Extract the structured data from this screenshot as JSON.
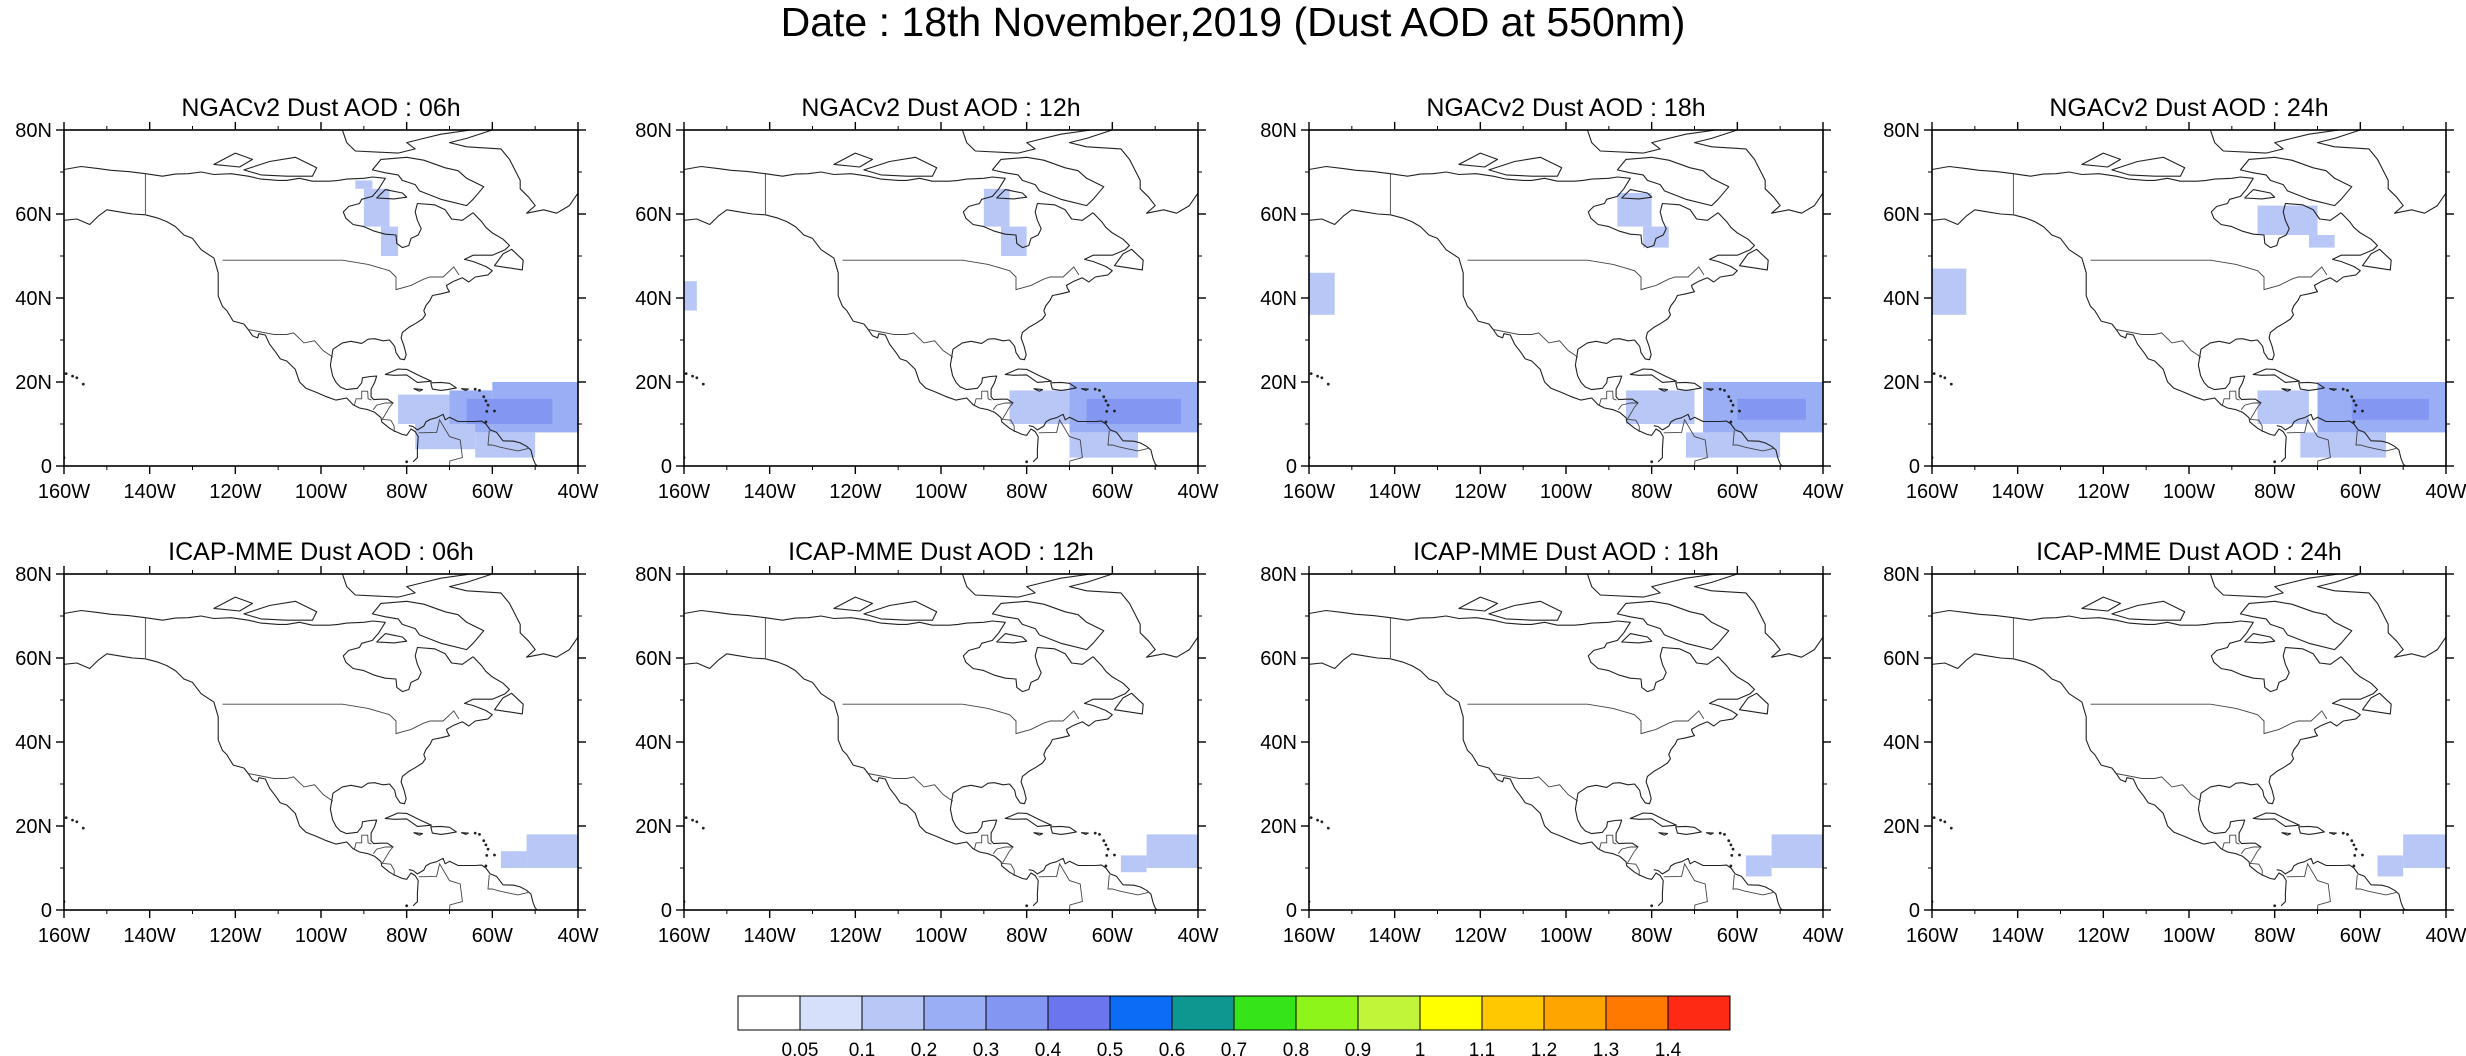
{
  "title": "Date : 18th November,2019 (Dust AOD at 550nm)",
  "panels": [
    {
      "title": "NGACv2 Dust AOD : 06h",
      "model": "NGACv2",
      "hour": "06h",
      "dust": [
        {
          "lon": [
            -92,
            -88
          ],
          "lat": [
            66,
            68
          ],
          "aod": 0.1
        },
        {
          "lon": [
            -90,
            -84
          ],
          "lat": [
            57,
            66
          ],
          "aod": 0.1
        },
        {
          "lon": [
            -86,
            -82
          ],
          "lat": [
            50,
            57
          ],
          "aod": 0.1
        },
        {
          "lon": [
            -82,
            -70
          ],
          "lat": [
            10,
            17
          ],
          "aod": 0.1
        },
        {
          "lon": [
            -70,
            -60
          ],
          "lat": [
            8,
            18
          ],
          "aod": 0.2
        },
        {
          "lon": [
            -60,
            -40
          ],
          "lat": [
            8,
            20
          ],
          "aod": 0.2
        },
        {
          "lon": [
            -66,
            -46
          ],
          "lat": [
            10,
            16
          ],
          "aod": 0.3
        },
        {
          "lon": [
            -78,
            -64
          ],
          "lat": [
            4,
            10
          ],
          "aod": 0.1
        },
        {
          "lon": [
            -64,
            -50
          ],
          "lat": [
            2,
            8
          ],
          "aod": 0.1
        }
      ]
    },
    {
      "title": "NGACv2 Dust AOD : 12h",
      "model": "NGACv2",
      "hour": "12h",
      "dust": [
        {
          "lon": [
            -160,
            -157
          ],
          "lat": [
            37,
            44
          ],
          "aod": 0.1
        },
        {
          "lon": [
            -90,
            -84
          ],
          "lat": [
            57,
            66
          ],
          "aod": 0.1
        },
        {
          "lon": [
            -86,
            -80
          ],
          "lat": [
            50,
            57
          ],
          "aod": 0.1
        },
        {
          "lon": [
            -84,
            -68
          ],
          "lat": [
            10,
            18
          ],
          "aod": 0.1
        },
        {
          "lon": [
            -70,
            -40
          ],
          "lat": [
            8,
            20
          ],
          "aod": 0.2
        },
        {
          "lon": [
            -66,
            -44
          ],
          "lat": [
            10,
            16
          ],
          "aod": 0.3
        },
        {
          "lon": [
            -70,
            -54
          ],
          "lat": [
            2,
            8
          ],
          "aod": 0.1
        }
      ]
    },
    {
      "title": "NGACv2 Dust AOD : 18h",
      "model": "NGACv2",
      "hour": "18h",
      "dust": [
        {
          "lon": [
            -160,
            -154
          ],
          "lat": [
            36,
            46
          ],
          "aod": 0.1
        },
        {
          "lon": [
            -88,
            -80
          ],
          "lat": [
            57,
            65
          ],
          "aod": 0.1
        },
        {
          "lon": [
            -82,
            -76
          ],
          "lat": [
            52,
            57
          ],
          "aod": 0.1
        },
        {
          "lon": [
            -86,
            -70
          ],
          "lat": [
            10,
            18
          ],
          "aod": 0.1
        },
        {
          "lon": [
            -68,
            -40
          ],
          "lat": [
            8,
            20
          ],
          "aod": 0.2
        },
        {
          "lon": [
            -60,
            -44
          ],
          "lat": [
            11,
            16
          ],
          "aod": 0.3
        },
        {
          "lon": [
            -72,
            -50
          ],
          "lat": [
            2,
            8
          ],
          "aod": 0.1
        }
      ]
    },
    {
      "title": "NGACv2 Dust AOD : 24h",
      "model": "NGACv2",
      "hour": "24h",
      "dust": [
        {
          "lon": [
            -160,
            -152
          ],
          "lat": [
            36,
            47
          ],
          "aod": 0.1
        },
        {
          "lon": [
            -84,
            -70
          ],
          "lat": [
            55,
            62
          ],
          "aod": 0.1
        },
        {
          "lon": [
            -72,
            -66
          ],
          "lat": [
            52,
            55
          ],
          "aod": 0.1
        },
        {
          "lon": [
            -84,
            -72
          ],
          "lat": [
            10,
            18
          ],
          "aod": 0.1
        },
        {
          "lon": [
            -70,
            -40
          ],
          "lat": [
            8,
            20
          ],
          "aod": 0.2
        },
        {
          "lon": [
            -62,
            -44
          ],
          "lat": [
            11,
            16
          ],
          "aod": 0.3
        },
        {
          "lon": [
            -74,
            -54
          ],
          "lat": [
            2,
            8
          ],
          "aod": 0.1
        }
      ]
    },
    {
      "title": "ICAP-MME Dust AOD : 06h",
      "model": "ICAP-MME",
      "hour": "06h",
      "dust": [
        {
          "lon": [
            -52,
            -40
          ],
          "lat": [
            10,
            18
          ],
          "aod": 0.1
        },
        {
          "lon": [
            -58,
            -52
          ],
          "lat": [
            10,
            14
          ],
          "aod": 0.1
        }
      ]
    },
    {
      "title": "ICAP-MME Dust AOD : 12h",
      "model": "ICAP-MME",
      "hour": "12h",
      "dust": [
        {
          "lon": [
            -52,
            -40
          ],
          "lat": [
            10,
            18
          ],
          "aod": 0.1
        },
        {
          "lon": [
            -58,
            -52
          ],
          "lat": [
            9,
            13
          ],
          "aod": 0.1
        }
      ]
    },
    {
      "title": "ICAP-MME Dust AOD : 18h",
      "model": "ICAP-MME",
      "hour": "18h",
      "dust": [
        {
          "lon": [
            -52,
            -40
          ],
          "lat": [
            10,
            18
          ],
          "aod": 0.1
        },
        {
          "lon": [
            -58,
            -52
          ],
          "lat": [
            8,
            13
          ],
          "aod": 0.1
        }
      ]
    },
    {
      "title": "ICAP-MME Dust AOD : 24h",
      "model": "ICAP-MME",
      "hour": "24h",
      "dust": [
        {
          "lon": [
            -50,
            -40
          ],
          "lat": [
            10,
            18
          ],
          "aod": 0.1
        },
        {
          "lon": [
            -56,
            -50
          ],
          "lat": [
            8,
            13
          ],
          "aod": 0.1
        }
      ]
    }
  ],
  "map": {
    "lon_range": [
      -160,
      -40
    ],
    "lat_range": [
      0,
      80
    ],
    "lon_ticks": [
      "160W",
      "140W",
      "120W",
      "100W",
      "80W",
      "60W",
      "40W"
    ],
    "lon_tick_values": [
      -160,
      -140,
      -120,
      -100,
      -80,
      -60,
      -40
    ],
    "lat_ticks": [
      "80N",
      "60N",
      "40N",
      "20N",
      "0"
    ],
    "lat_tick_values": [
      80,
      60,
      40,
      20,
      0
    ]
  },
  "colorbar": {
    "labels": [
      "0.05",
      "0.1",
      "0.2",
      "0.3",
      "0.4",
      "0.5",
      "0.6",
      "0.7",
      "0.8",
      "0.9",
      "1",
      "1.1",
      "1.2",
      "1.3",
      "1.4"
    ],
    "colors": [
      "#ffffff",
      "#d6e0fa",
      "#b9c7f7",
      "#9aaef5",
      "#8396f2",
      "#6b75ee",
      "#0d6cf5",
      "#0e9690",
      "#35e51a",
      "#8ef51a",
      "#c0f53a",
      "#ffff00",
      "#ffc800",
      "#ffa500",
      "#ff7800",
      "#ff2a14"
    ]
  }
}
